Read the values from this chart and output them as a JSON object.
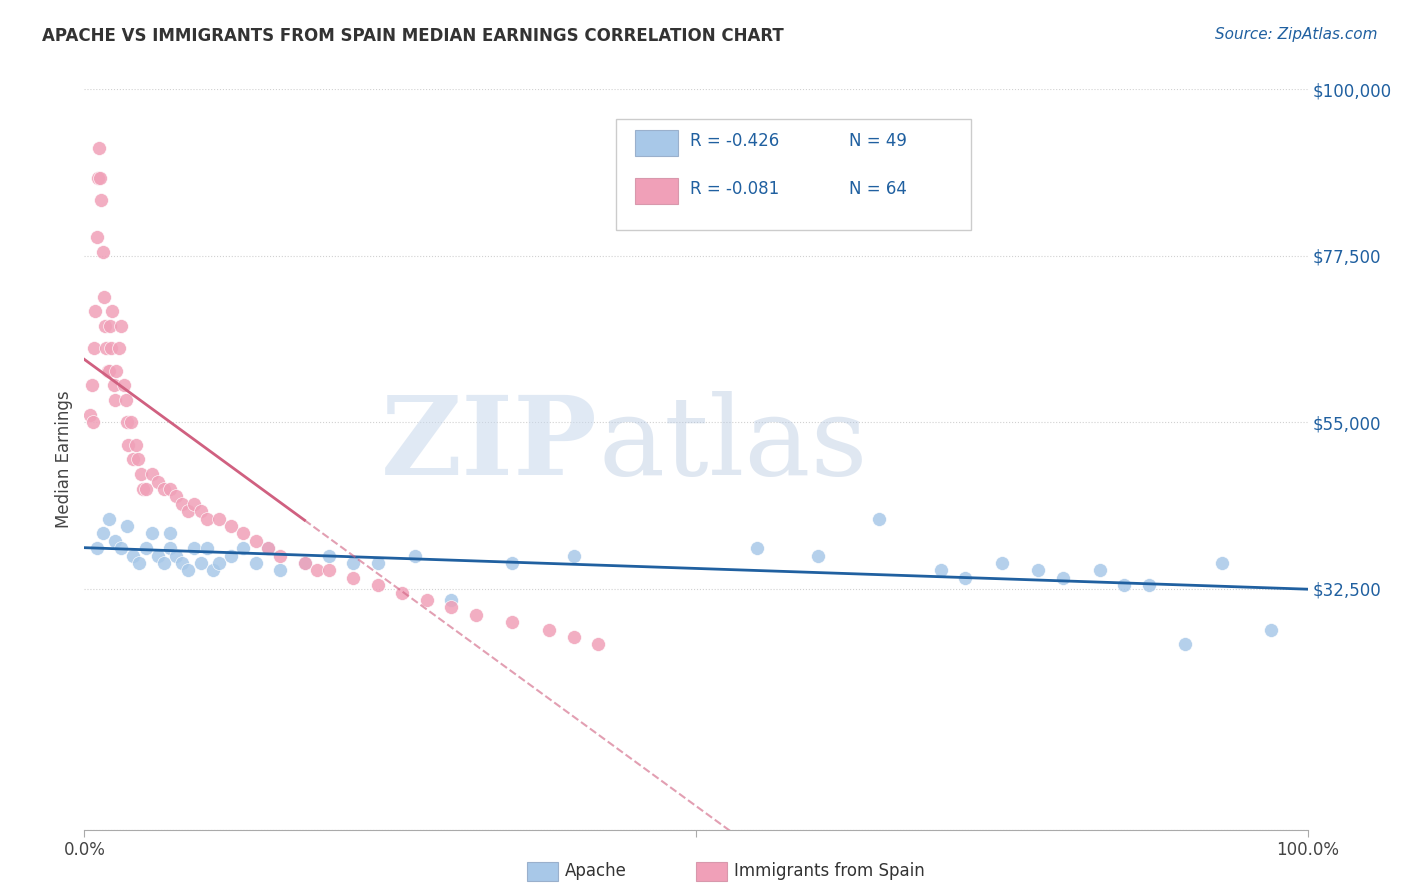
{
  "title": "APACHE VS IMMIGRANTS FROM SPAIN MEDIAN EARNINGS CORRELATION CHART",
  "source": "Source: ZipAtlas.com",
  "ylabel": "Median Earnings",
  "xlim": [
    0,
    1.0
  ],
  "ylim": [
    0,
    100000
  ],
  "yticks": [
    0,
    32500,
    55000,
    77500,
    100000
  ],
  "ytick_labels": [
    "",
    "$32,500",
    "$55,000",
    "$77,500",
    "$100,000"
  ],
  "apache_color": "#a8c8e8",
  "spain_color": "#f0a0b8",
  "apache_line_color": "#2060a0",
  "spain_line_color": "#d06080",
  "legend_apache_r": "R = -0.426",
  "legend_apache_n": "N = 49",
  "legend_spain_r": "R = -0.081",
  "legend_spain_n": "N = 64",
  "apache_x": [
    0.01,
    0.015,
    0.02,
    0.025,
    0.03,
    0.035,
    0.04,
    0.045,
    0.05,
    0.055,
    0.06,
    0.065,
    0.07,
    0.07,
    0.075,
    0.08,
    0.085,
    0.09,
    0.095,
    0.1,
    0.105,
    0.11,
    0.12,
    0.13,
    0.14,
    0.15,
    0.16,
    0.18,
    0.2,
    0.22,
    0.24,
    0.27,
    0.3,
    0.35,
    0.4,
    0.55,
    0.6,
    0.65,
    0.7,
    0.72,
    0.75,
    0.78,
    0.8,
    0.83,
    0.85,
    0.87,
    0.9,
    0.93,
    0.97
  ],
  "apache_y": [
    38000,
    40000,
    42000,
    39000,
    38000,
    41000,
    37000,
    36000,
    38000,
    40000,
    37000,
    36000,
    38000,
    40000,
    37000,
    36000,
    35000,
    38000,
    36000,
    38000,
    35000,
    36000,
    37000,
    38000,
    36000,
    38000,
    35000,
    36000,
    37000,
    36000,
    36000,
    37000,
    31000,
    36000,
    37000,
    38000,
    37000,
    42000,
    35000,
    34000,
    36000,
    35000,
    34000,
    35000,
    33000,
    33000,
    25000,
    36000,
    27000
  ],
  "spain_x": [
    0.005,
    0.006,
    0.007,
    0.008,
    0.009,
    0.01,
    0.011,
    0.012,
    0.013,
    0.014,
    0.015,
    0.016,
    0.017,
    0.018,
    0.019,
    0.02,
    0.021,
    0.022,
    0.023,
    0.024,
    0.025,
    0.026,
    0.028,
    0.03,
    0.032,
    0.034,
    0.035,
    0.036,
    0.038,
    0.04,
    0.042,
    0.044,
    0.046,
    0.048,
    0.05,
    0.055,
    0.06,
    0.065,
    0.07,
    0.075,
    0.08,
    0.085,
    0.09,
    0.095,
    0.1,
    0.11,
    0.12,
    0.13,
    0.14,
    0.15,
    0.16,
    0.18,
    0.19,
    0.2,
    0.22,
    0.24,
    0.26,
    0.28,
    0.3,
    0.32,
    0.35,
    0.38,
    0.4,
    0.42
  ],
  "spain_y": [
    56000,
    60000,
    55000,
    65000,
    70000,
    80000,
    88000,
    92000,
    88000,
    85000,
    78000,
    72000,
    68000,
    65000,
    62000,
    62000,
    68000,
    65000,
    70000,
    60000,
    58000,
    62000,
    65000,
    68000,
    60000,
    58000,
    55000,
    52000,
    55000,
    50000,
    52000,
    50000,
    48000,
    46000,
    46000,
    48000,
    47000,
    46000,
    46000,
    45000,
    44000,
    43000,
    44000,
    43000,
    42000,
    42000,
    41000,
    40000,
    39000,
    38000,
    37000,
    36000,
    35000,
    35000,
    34000,
    33000,
    32000,
    31000,
    30000,
    29000,
    28000,
    27000,
    26000,
    25000
  ]
}
